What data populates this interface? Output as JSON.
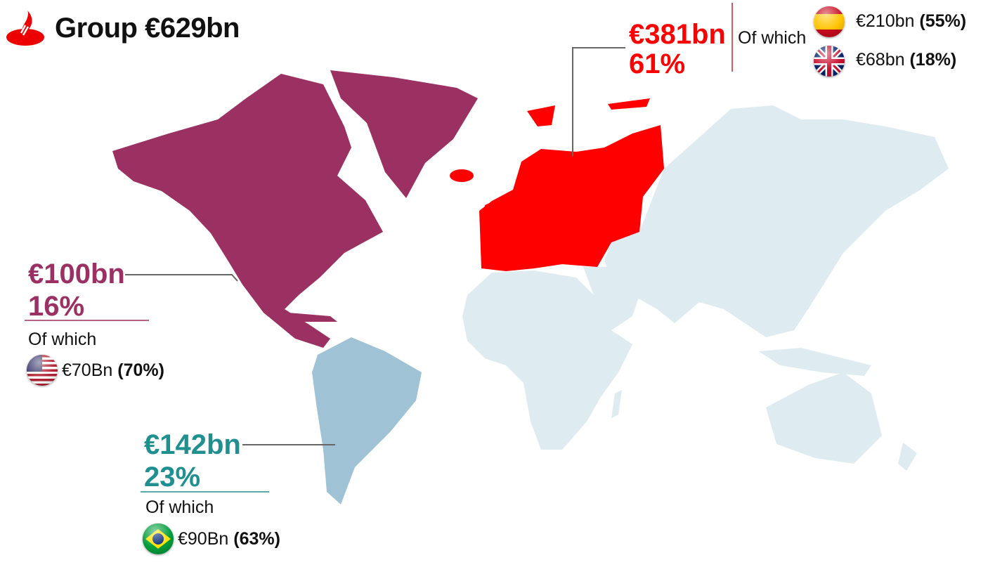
{
  "header": {
    "logo": "santander-flame-logo",
    "title": "Group €629bn"
  },
  "colors": {
    "americas_north": "#9b3163",
    "europe": "#ff0000",
    "south_america": "#9fc3d5",
    "other": "#deebf0",
    "south_america_text": "#1f8f8f"
  },
  "regions": {
    "europe": {
      "amount": "€381bn",
      "share": "61%",
      "of_which": "Of which",
      "items": [
        {
          "flag": "spain-flag-icon",
          "amount": "€210bn",
          "share": "(55%)"
        },
        {
          "flag": "uk-flag-icon",
          "amount": "€68bn",
          "share": "(18%)"
        }
      ]
    },
    "north_america": {
      "amount": "€100bn",
      "share": "16%",
      "of_which": "Of which",
      "items": [
        {
          "flag": "usa-flag-icon",
          "amount": "€70Bn",
          "share": "(70%)"
        }
      ]
    },
    "south_america": {
      "amount": "€142bn",
      "share": "23%",
      "of_which": "Of which",
      "items": [
        {
          "flag": "brazil-flag-icon",
          "amount": "€90Bn",
          "share": "(63%)"
        }
      ]
    }
  }
}
